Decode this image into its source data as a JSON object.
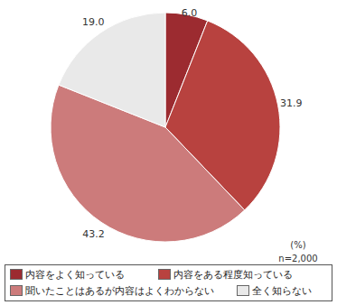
{
  "chart_data": {
    "type": "pie",
    "categories": [
      "内容をよく知っている",
      "内容をある程度知っている",
      "聞いたことはあるが内容はよくわからない",
      "全く知らない"
    ],
    "values": [
      6.0,
      31.9,
      43.2,
      19.0
    ],
    "value_labels": [
      "6.0",
      "31.9",
      "43.2",
      "19.0"
    ],
    "colors": [
      "#9c2b30",
      "#b8423f",
      "#cc7b7b",
      "#e9e9e9"
    ],
    "data_labels": true,
    "legend": "bottom",
    "annotations": [
      "(%)",
      "n=2,000"
    ]
  }
}
